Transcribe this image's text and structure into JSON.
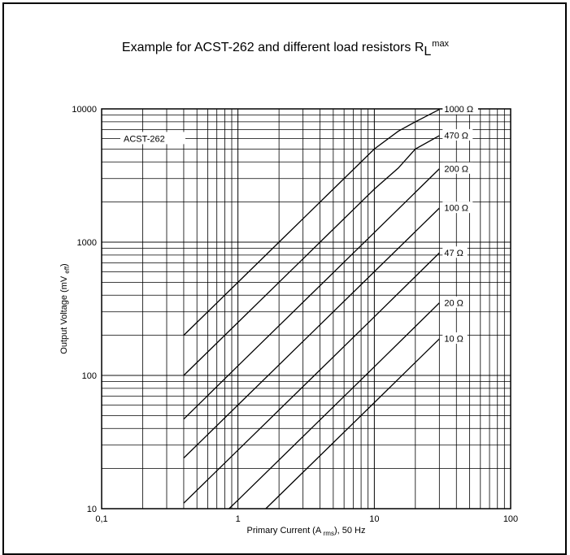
{
  "chart_data": {
    "type": "line",
    "title": {
      "prefix": "Example for ACST-262 and different load resistors R",
      "sub": "L",
      "sup": "max"
    },
    "xlabel": {
      "main": "Primary Current (A ",
      "sub": "rms",
      "rest": "), 50 Hz"
    },
    "ylabel": {
      "main": "Output Voltage (mV ",
      "sub": "eff",
      "rest": ")"
    },
    "x_scale": "log",
    "y_scale": "log",
    "xlim": [
      0.1,
      100
    ],
    "ylim": [
      10,
      10000
    ],
    "x_tick_labels": [
      "0,1",
      "1",
      "10",
      "100"
    ],
    "y_tick_labels": [
      "10",
      "100",
      "1000",
      "10000"
    ],
    "grid": true,
    "annotation": "ACST-262",
    "series": [
      {
        "name": "1000 Ω",
        "points": [
          [
            0.4,
            200
          ],
          [
            1,
            500
          ],
          [
            2,
            1000
          ],
          [
            5,
            2500
          ],
          [
            10,
            5000
          ],
          [
            15,
            6800
          ],
          [
            20,
            8000
          ],
          [
            30,
            9900
          ]
        ]
      },
      {
        "name": "470 Ω",
        "points": [
          [
            0.4,
            100
          ],
          [
            1,
            250
          ],
          [
            4,
            1000
          ],
          [
            10,
            2500
          ],
          [
            15,
            3600
          ],
          [
            20,
            5000
          ],
          [
            30,
            6300
          ]
        ]
      },
      {
        "name": "200 Ω",
        "points": [
          [
            0.4,
            47
          ],
          [
            1,
            118
          ],
          [
            10,
            1180
          ],
          [
            30,
            3550
          ]
        ]
      },
      {
        "name": "100 Ω",
        "points": [
          [
            0.4,
            24
          ],
          [
            1,
            60
          ],
          [
            10,
            600
          ],
          [
            30,
            1800
          ]
        ]
      },
      {
        "name": "47 Ω",
        "points": [
          [
            0.4,
            11
          ],
          [
            1,
            27.5
          ],
          [
            10,
            275
          ],
          [
            30,
            830
          ]
        ]
      },
      {
        "name": "20 Ω",
        "points": [
          [
            0.86,
            10
          ],
          [
            1,
            11.6
          ],
          [
            10,
            116
          ],
          [
            30,
            350
          ]
        ]
      },
      {
        "name": "10 Ω",
        "points": [
          [
            1.6,
            10
          ],
          [
            10,
            62.5
          ],
          [
            30,
            188
          ]
        ]
      }
    ]
  }
}
